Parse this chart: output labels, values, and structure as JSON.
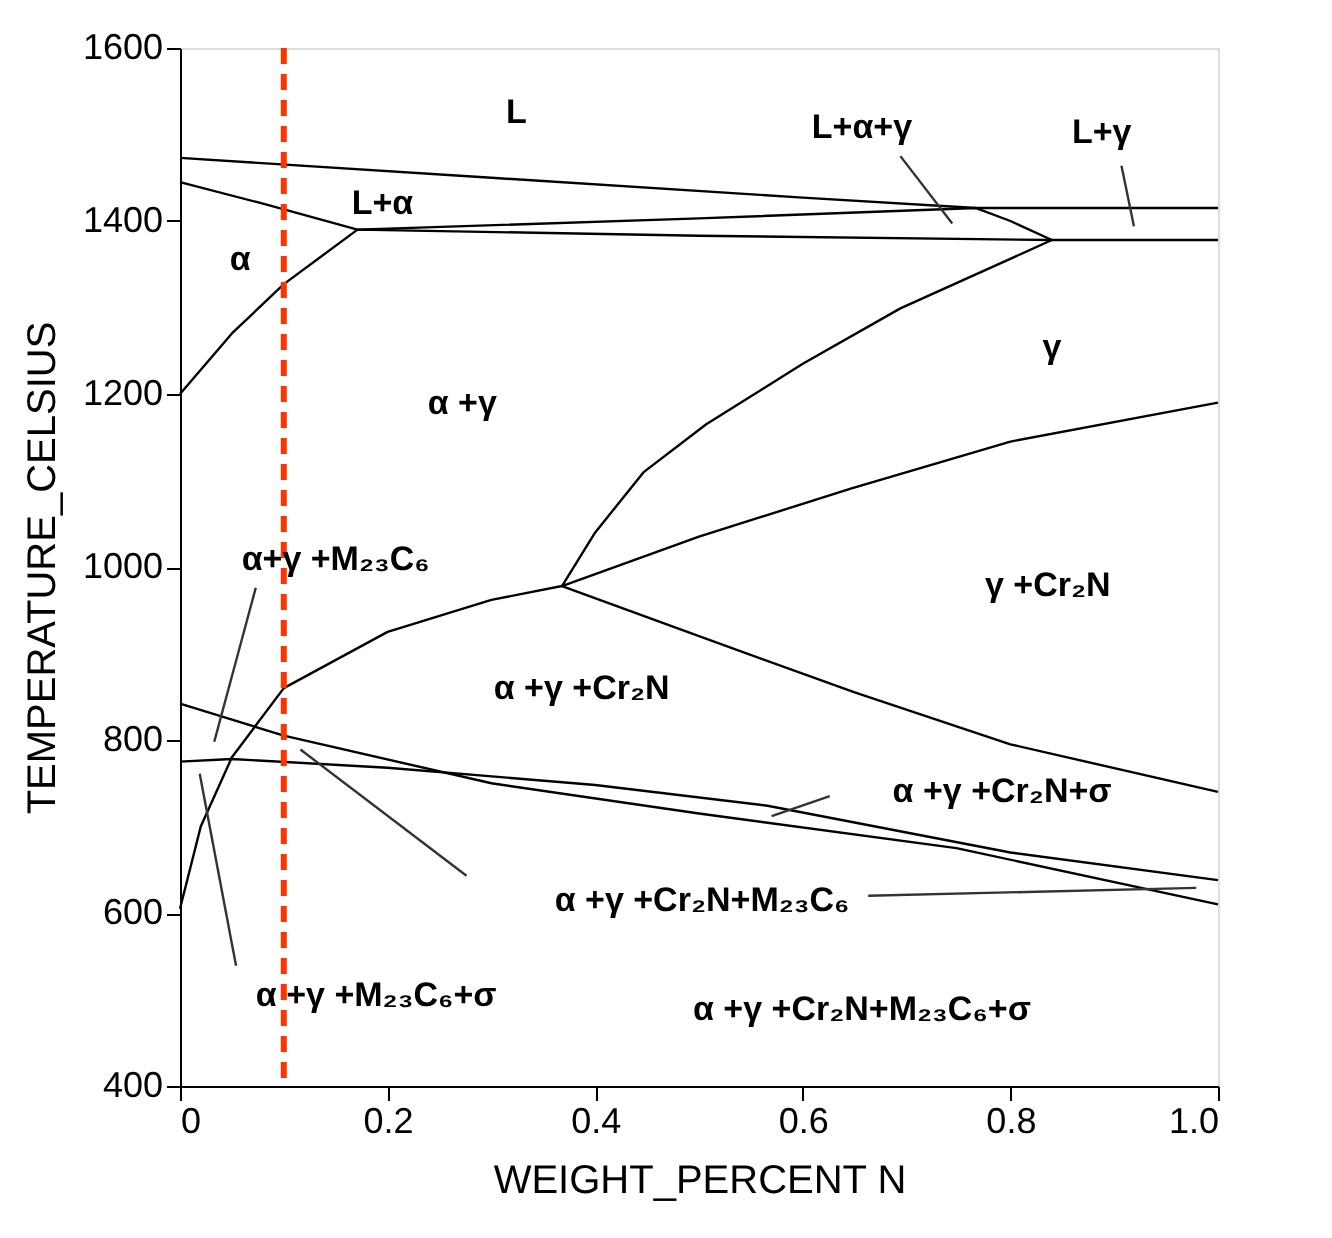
{
  "chart_data": {
    "type": "line",
    "xlabel": "WEIGHT_PERCENT N",
    "ylabel": "TEMPERATURE_CELSIUS",
    "xlim": [
      0,
      1
    ],
    "ylim": [
      400,
      1600
    ],
    "xticks": [
      0,
      0.2,
      0.4,
      0.6,
      0.8,
      {
        "value": 1,
        "label": "1.0"
      }
    ],
    "yticks": [
      400,
      600,
      800,
      1000,
      1200,
      1400,
      1600
    ],
    "grid": false,
    "marker": "none",
    "line_style": "solid",
    "series": [
      {
        "color": "#000000",
        "x": [
          0,
          0.3,
          0.6,
          0.767,
          1.0
        ],
        "values": [
          1473,
          1450,
          1427,
          1415,
          1415
        ]
      },
      {
        "color": "#000000",
        "x": [
          0,
          0.08,
          0.171,
          0.5,
          0.767,
          0.8,
          0.84
        ],
        "values": [
          1445,
          1420,
          1390,
          1403,
          1415,
          1400,
          1378
        ]
      },
      {
        "color": "#000000",
        "x": [
          0,
          0.05,
          0.1,
          0.171,
          0.5,
          0.84,
          1.0
        ],
        "values": [
          1200,
          1270,
          1327,
          1390,
          1383,
          1378,
          1378
        ]
      },
      {
        "color": "#000000",
        "x": [
          0.368,
          0.4,
          0.447,
          0.507,
          0.6,
          0.694,
          0.84
        ],
        "values": [
          978,
          1040,
          1110,
          1165,
          1235,
          1299,
          1378
        ]
      },
      {
        "color": "#000000",
        "x": [
          0,
          0.02,
          0.05,
          0.1,
          0.2,
          0.3,
          0.368,
          0.5,
          0.647,
          0.8,
          1.0
        ],
        "values": [
          605,
          700,
          780,
          860,
          925,
          962,
          978,
          1035,
          1091,
          1145,
          1190
        ]
      },
      {
        "color": "#000000",
        "x": [
          0.368,
          0.5,
          0.65,
          0.8,
          1.0
        ],
        "values": [
          978,
          920,
          855,
          795,
          740
        ]
      },
      {
        "color": "#000000",
        "x": [
          0,
          0.1,
          0.3,
          0.5,
          0.748,
          1.0
        ],
        "values": [
          842,
          805,
          750,
          715,
          675,
          610
        ]
      },
      {
        "color": "#000000",
        "x": [
          0,
          0.05,
          0.2,
          0.4,
          0.566,
          0.8,
          1.0
        ],
        "values": [
          775,
          778,
          768,
          748,
          724,
          670,
          638
        ]
      },
      {
        "color": "#333333",
        "x": [
          0.694,
          0.744
        ],
        "values": [
          1475,
          1397
        ]
      },
      {
        "color": "#333333",
        "x": [
          0.907,
          0.919
        ],
        "values": [
          1464,
          1394
        ]
      },
      {
        "color": "#333333",
        "x": [
          0.073,
          0.033
        ],
        "values": [
          976,
          798
        ]
      },
      {
        "color": "#333333",
        "x": [
          0.626,
          0.57
        ],
        "values": [
          735,
          712
        ]
      },
      {
        "color": "#333333",
        "x": [
          0.276,
          0.116
        ],
        "values": [
          643,
          789
        ]
      },
      {
        "color": "#333333",
        "x": [
          0.663,
          0.979
        ],
        "values": [
          620,
          629
        ]
      },
      {
        "color": "#333333",
        "x": [
          0.054,
          0.019
        ],
        "values": [
          539,
          761
        ]
      }
    ],
    "ref_lines": [
      {
        "axis": "x",
        "value": 0.1,
        "color": "#ff3300",
        "line_style": "dashed"
      }
    ],
    "annotations": [
      "L",
      "L+α+γ",
      "L+γ",
      "L+α",
      "α",
      "α +γ",
      "γ",
      "α+γ +M₂₃C₆",
      "γ +Cr₂N",
      "α +γ +Cr₂N",
      "α +γ +Cr₂N+σ",
      "α +γ +Cr₂N+M₂₃C₆",
      "α +γ +M₂₃C₆+σ",
      "α +γ +Cr₂N+M₂₃C₆+σ"
    ]
  }
}
